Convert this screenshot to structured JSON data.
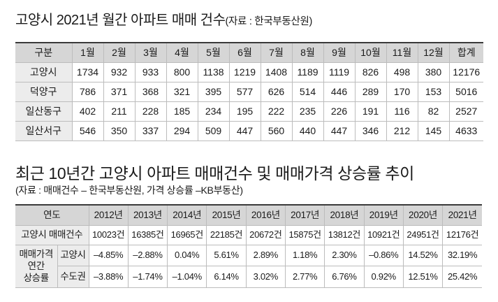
{
  "table1": {
    "title": "고양시 2021년 월간 아파트 매매 건수",
    "source": "(자료 : 한국부동산원)",
    "headers": [
      "구분",
      "1월",
      "2월",
      "3월",
      "4월",
      "5월",
      "6월",
      "7월",
      "8월",
      "9월",
      "10월",
      "11월",
      "12월",
      "합계"
    ],
    "rows": [
      {
        "label": "고양시",
        "values": [
          "1734",
          "932",
          "933",
          "800",
          "1138",
          "1219",
          "1408",
          "1189",
          "1119",
          "826",
          "498",
          "380",
          "12176"
        ]
      },
      {
        "label": "덕양구",
        "values": [
          "786",
          "371",
          "368",
          "321",
          "395",
          "577",
          "626",
          "514",
          "446",
          "289",
          "170",
          "153",
          "5016"
        ]
      },
      {
        "label": "일산동구",
        "values": [
          "402",
          "211",
          "228",
          "185",
          "234",
          "195",
          "222",
          "235",
          "226",
          "191",
          "116",
          "82",
          "2527"
        ]
      },
      {
        "label": "일산서구",
        "values": [
          "546",
          "350",
          "337",
          "294",
          "509",
          "447",
          "560",
          "440",
          "447",
          "346",
          "212",
          "145",
          "4633"
        ]
      }
    ]
  },
  "table2": {
    "title": "최근 10년간 고양시 아파트 매매건수 및 매매가격 상승률 추이",
    "source": "(자료 : 매매건수 – 한국부동산원, 가격 상승률 –KB부동산)",
    "header_label": "연도",
    "years": [
      "2012년",
      "2013년",
      "2014년",
      "2015년",
      "2016년",
      "2017년",
      "2018년",
      "2019년",
      "2020년",
      "2021년"
    ],
    "count_row": {
      "label": "고양시 매매건수",
      "values": [
        "10023건",
        "16385건",
        "16965건",
        "22185건",
        "20672건",
        "15875건",
        "13812건",
        "10921건",
        "24951건",
        "12176건"
      ]
    },
    "price_group_label": [
      "매매가격",
      "연간",
      "상승률"
    ],
    "price_rows": [
      {
        "label": "고양시",
        "values": [
          "–4.85%",
          "–2.88%",
          "0.04%",
          "5.61%",
          "2.89%",
          "1.18%",
          "2.30%",
          "–0.86%",
          "14.52%",
          "32.19%"
        ]
      },
      {
        "label": "수도권",
        "values": [
          "–3.88%",
          "–1.74%",
          "–1.04%",
          "6.14%",
          "3.02%",
          "2.77%",
          "6.76%",
          "0.92%",
          "12.51%",
          "25.42%"
        ]
      }
    ]
  },
  "colors": {
    "header_bg": "#d6d6d6",
    "label_bg": "#ececec",
    "top_rule": "#3a3a3a",
    "grid_line": "#bcbcbc",
    "text": "#1a1a1a"
  }
}
